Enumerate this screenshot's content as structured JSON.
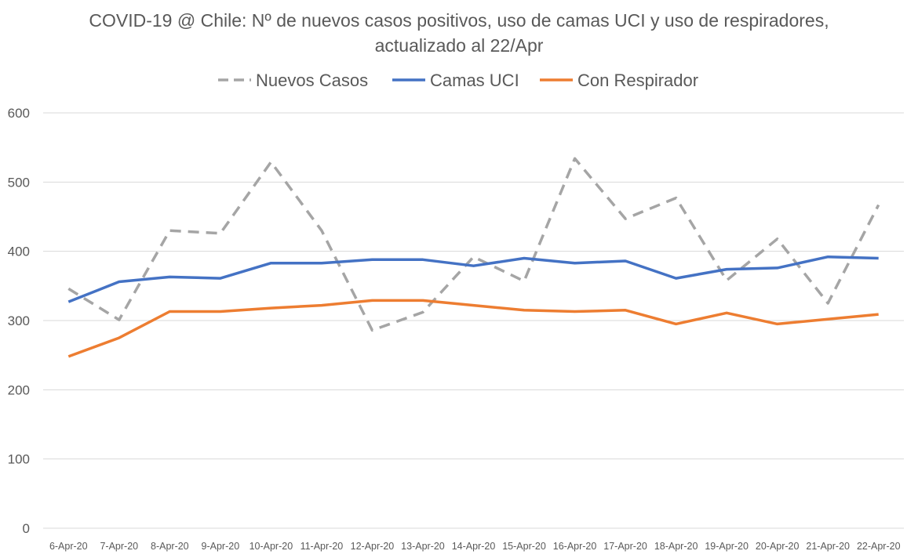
{
  "chart_data": {
    "type": "line",
    "title": "COVID-19 @ Chile: Nº de nuevos casos positivos, uso de camas UCI y uso de respiradores,",
    "subtitle": "actualizado al 22/Apr",
    "xlabel": "",
    "ylabel": "",
    "ylim": [
      0,
      600
    ],
    "yticks": [
      "0",
      "100",
      "200",
      "300",
      "400",
      "500",
      "600"
    ],
    "grid": true,
    "legend_position": "top",
    "categories": [
      "6-Apr-20",
      "7-Apr-20",
      "8-Apr-20",
      "9-Apr-20",
      "10-Apr-20",
      "11-Apr-20",
      "12-Apr-20",
      "13-Apr-20",
      "14-Apr-20",
      "15-Apr-20",
      "16-Apr-20",
      "17-Apr-20",
      "18-Apr-20",
      "19-Apr-20",
      "20-Apr-20",
      "21-Apr-20",
      "22-Apr-20"
    ],
    "series": [
      {
        "name": "Nuevos Casos",
        "color": "#a5a5a5",
        "style": "dashed",
        "values": [
          346,
          301,
          430,
          426,
          529,
          430,
          286,
          312,
          392,
          357,
          534,
          447,
          477,
          358,
          418,
          325,
          467
        ]
      },
      {
        "name": "Camas UCI",
        "color": "#4472c4",
        "style": "solid",
        "values": [
          327,
          356,
          363,
          361,
          383,
          383,
          388,
          388,
          379,
          390,
          383,
          386,
          361,
          374,
          376,
          392,
          390
        ]
      },
      {
        "name": "Con Respirador",
        "color": "#ed7d31",
        "style": "solid",
        "values": [
          248,
          275,
          313,
          313,
          318,
          322,
          329,
          329,
          322,
          315,
          313,
          315,
          295,
          311,
          295,
          302,
          309
        ]
      }
    ]
  }
}
